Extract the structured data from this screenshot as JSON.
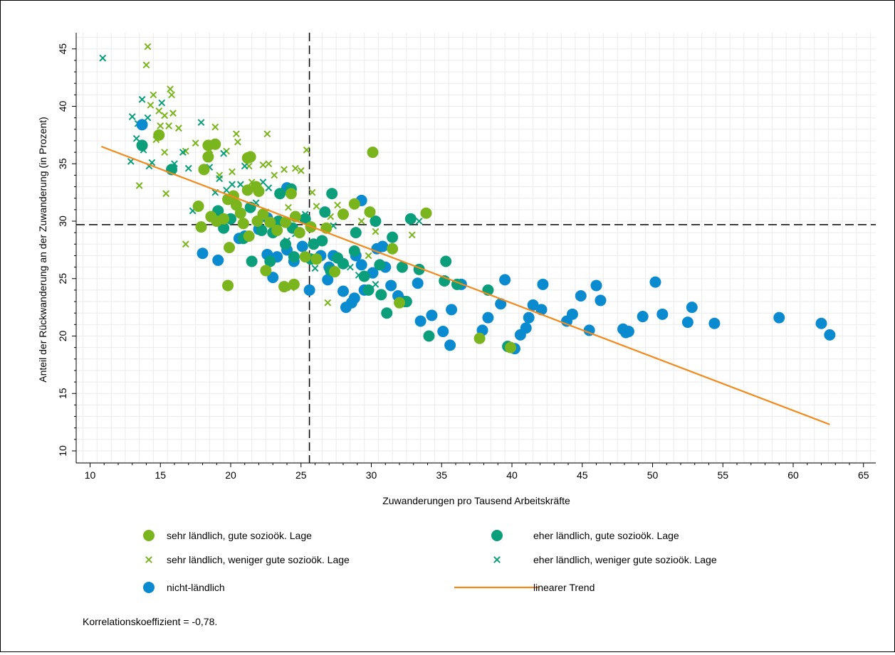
{
  "chart_data": {
    "type": "scatter",
    "title": "",
    "xlabel": "Zuwanderungen pro Tausend Arbeitskräfte",
    "ylabel": "Anteil der Rückwanderung an der Zuwanderung (in Prozent)",
    "xlim": [
      10,
      65
    ],
    "ylim": [
      10,
      45
    ],
    "x_ticks": [
      "10",
      "15",
      "20",
      "25",
      "30",
      "35",
      "40",
      "45",
      "50",
      "55",
      "60",
      "65"
    ],
    "y_ticks": [
      "10",
      "15",
      "20",
      "25",
      "30",
      "35",
      "40",
      "45"
    ],
    "grid": true,
    "reference_lines": {
      "x": 25.6,
      "y": 29.7
    },
    "legend_position": "bottom",
    "note": "Korrelationskoeffizient = -0,78.",
    "colors": {
      "light_green": "#7ab51d",
      "teal": "#0a9e7a",
      "blue": "#0a8bd0",
      "trend": "#f08a1c"
    },
    "series": [
      {
        "name": "sehr ländlich, gute sozioök. Lage",
        "marker": "circle",
        "color": "#7ab51d",
        "points": [
          [
            14.9,
            37.5
          ],
          [
            18.4,
            36.6
          ],
          [
            18.9,
            36.7
          ],
          [
            21.2,
            35.5
          ],
          [
            21.4,
            35.6
          ],
          [
            18.4,
            35.6
          ],
          [
            18.1,
            34.5
          ],
          [
            17.7,
            31.3
          ],
          [
            17.9,
            29.5
          ],
          [
            18.6,
            30.4
          ],
          [
            19.0,
            30.0
          ],
          [
            19.5,
            30.2
          ],
          [
            19.8,
            31.9
          ],
          [
            20.2,
            32.2
          ],
          [
            20.4,
            31.4
          ],
          [
            20.7,
            30.7
          ],
          [
            20.9,
            29.8
          ],
          [
            21.2,
            32.7
          ],
          [
            21.8,
            33.0
          ],
          [
            22.0,
            32.6
          ],
          [
            21.9,
            30.0
          ],
          [
            22.3,
            30.6
          ],
          [
            22.8,
            29.9
          ],
          [
            23.3,
            29.2
          ],
          [
            19.9,
            27.7
          ],
          [
            21.3,
            28.7
          ],
          [
            23.9,
            29.9
          ],
          [
            24.6,
            30.4
          ],
          [
            24.3,
            32.4
          ],
          [
            24.9,
            29.0
          ],
          [
            22.5,
            25.7
          ],
          [
            23.8,
            24.3
          ],
          [
            24.5,
            24.5
          ],
          [
            25.3,
            26.9
          ],
          [
            26.1,
            26.7
          ],
          [
            25.7,
            29.5
          ],
          [
            26.8,
            29.4
          ],
          [
            28.8,
            31.5
          ],
          [
            28.0,
            30.6
          ],
          [
            27.4,
            25.6
          ],
          [
            29.9,
            30.8
          ],
          [
            30.1,
            36.0
          ],
          [
            33.9,
            30.7
          ],
          [
            31.5,
            27.6
          ],
          [
            32.0,
            22.9
          ],
          [
            37.7,
            19.8
          ],
          [
            39.9,
            19.0
          ],
          [
            19.8,
            24.4
          ]
        ]
      },
      {
        "name": "sehr ländlich, weniger gute sozioök. Lage",
        "marker": "x",
        "color": "#7ab51d",
        "points": [
          [
            14.1,
            45.2
          ],
          [
            14.0,
            43.6
          ],
          [
            14.3,
            40.1
          ],
          [
            14.5,
            41.0
          ],
          [
            14.9,
            39.6
          ],
          [
            15.7,
            41.5
          ],
          [
            15.8,
            41.0
          ],
          [
            15.3,
            39.2
          ],
          [
            15.9,
            39.4
          ],
          [
            15.6,
            38.3
          ],
          [
            16.3,
            38.1
          ],
          [
            15.0,
            38.3
          ],
          [
            14.7,
            37.1
          ],
          [
            15.3,
            36.0
          ],
          [
            16.8,
            36.1
          ],
          [
            13.5,
            33.1
          ],
          [
            15.4,
            32.4
          ],
          [
            17.5,
            36.8
          ],
          [
            18.5,
            36.2
          ],
          [
            18.9,
            38.2
          ],
          [
            19.7,
            36.1
          ],
          [
            20.4,
            37.6
          ],
          [
            20.5,
            36.9
          ],
          [
            20.1,
            34.3
          ],
          [
            19.2,
            34.0
          ],
          [
            21.3,
            34.8
          ],
          [
            21.5,
            33.4
          ],
          [
            22.3,
            34.9
          ],
          [
            22.7,
            35.0
          ],
          [
            22.6,
            37.6
          ],
          [
            23.1,
            34.0
          ],
          [
            23.8,
            34.5
          ],
          [
            24.6,
            34.6
          ],
          [
            25.0,
            34.4
          ],
          [
            25.4,
            36.2
          ],
          [
            25.8,
            32.5
          ],
          [
            26.1,
            31.3
          ],
          [
            27.6,
            31.4
          ],
          [
            27.1,
            30.4
          ],
          [
            29.3,
            30.0
          ],
          [
            30.3,
            29.1
          ],
          [
            32.9,
            28.8
          ],
          [
            29.8,
            27.0
          ],
          [
            26.9,
            22.9
          ],
          [
            24.3,
            24.2
          ],
          [
            16.8,
            28.0
          ],
          [
            22.5,
            30.8
          ],
          [
            24.1,
            31.2
          ]
        ]
      },
      {
        "name": "eher ländlich, gute sozioök. Lage",
        "marker": "circle",
        "color": "#0a9e7a",
        "points": [
          [
            13.7,
            36.6
          ],
          [
            15.8,
            34.5
          ],
          [
            19.1,
            30.9
          ],
          [
            19.5,
            29.4
          ],
          [
            20.0,
            30.2
          ],
          [
            20.9,
            28.5
          ],
          [
            21.4,
            31.2
          ],
          [
            21.5,
            26.5
          ],
          [
            22.2,
            29.2
          ],
          [
            23.0,
            29.0
          ],
          [
            23.4,
            30.0
          ],
          [
            23.5,
            32.4
          ],
          [
            23.9,
            28.0
          ],
          [
            24.3,
            32.8
          ],
          [
            24.4,
            29.4
          ],
          [
            25.3,
            30.2
          ],
          [
            25.7,
            26.7
          ],
          [
            25.9,
            28.0
          ],
          [
            26.5,
            28.3
          ],
          [
            26.7,
            30.8
          ],
          [
            27.2,
            32.4
          ],
          [
            27.1,
            25.7
          ],
          [
            27.6,
            26.8
          ],
          [
            28.0,
            26.3
          ],
          [
            28.8,
            27.4
          ],
          [
            28.9,
            29.0
          ],
          [
            29.5,
            25.2
          ],
          [
            29.8,
            24.0
          ],
          [
            30.3,
            30.0
          ],
          [
            30.6,
            26.2
          ],
          [
            30.7,
            23.6
          ],
          [
            31.1,
            22.0
          ],
          [
            31.5,
            28.6
          ],
          [
            32.2,
            26.0
          ],
          [
            32.5,
            23.0
          ],
          [
            32.8,
            30.2
          ],
          [
            33.4,
            25.8
          ],
          [
            34.1,
            20.0
          ],
          [
            35.2,
            24.8
          ],
          [
            35.3,
            26.5
          ],
          [
            36.1,
            24.5
          ],
          [
            38.3,
            24.0
          ],
          [
            39.7,
            19.1
          ],
          [
            24.5,
            26.9
          ],
          [
            22.8,
            26.5
          ]
        ]
      },
      {
        "name": "eher ländlich, weniger gute sozioök. Lage",
        "marker": "x",
        "color": "#0a9e7a",
        "points": [
          [
            10.9,
            44.2
          ],
          [
            13.0,
            39.1
          ],
          [
            13.3,
            37.2
          ],
          [
            13.4,
            38.5
          ],
          [
            13.7,
            40.6
          ],
          [
            13.8,
            36.2
          ],
          [
            14.1,
            39.0
          ],
          [
            14.4,
            35.1
          ],
          [
            15.1,
            40.3
          ],
          [
            16.0,
            35.0
          ],
          [
            16.6,
            36.0
          ],
          [
            17.0,
            34.6
          ],
          [
            17.3,
            30.9
          ],
          [
            17.9,
            38.6
          ],
          [
            18.5,
            34.7
          ],
          [
            18.9,
            32.5
          ],
          [
            19.2,
            33.7
          ],
          [
            19.5,
            35.9
          ],
          [
            19.7,
            32.7
          ],
          [
            20.1,
            33.2
          ],
          [
            20.7,
            33.2
          ],
          [
            21.0,
            34.8
          ],
          [
            21.8,
            31.6
          ],
          [
            22.3,
            33.4
          ],
          [
            22.7,
            32.9
          ],
          [
            24.0,
            28.3
          ],
          [
            24.6,
            28.9
          ],
          [
            25.3,
            30.6
          ],
          [
            26.0,
            25.9
          ],
          [
            26.6,
            30.8
          ],
          [
            27.3,
            29.6
          ],
          [
            28.5,
            26.0
          ],
          [
            29.1,
            25.3
          ],
          [
            30.3,
            24.5
          ],
          [
            33.4,
            30.0
          ],
          [
            12.9,
            35.2
          ],
          [
            14.2,
            34.8
          ]
        ]
      },
      {
        "name": "nicht-ländlich",
        "marker": "circle",
        "color": "#0a8bd0",
        "points": [
          [
            13.7,
            38.4
          ],
          [
            18.0,
            27.2
          ],
          [
            19.1,
            26.6
          ],
          [
            20.6,
            28.5
          ],
          [
            21.0,
            28.7
          ],
          [
            22.0,
            29.3
          ],
          [
            22.6,
            27.1
          ],
          [
            23.0,
            25.1
          ],
          [
            23.3,
            26.9
          ],
          [
            24.0,
            27.5
          ],
          [
            24.5,
            26.5
          ],
          [
            25.1,
            27.8
          ],
          [
            25.6,
            24.0
          ],
          [
            26.4,
            27.0
          ],
          [
            26.9,
            24.9
          ],
          [
            27.0,
            26.0
          ],
          [
            27.3,
            27.0
          ],
          [
            28.0,
            23.9
          ],
          [
            28.2,
            22.5
          ],
          [
            28.6,
            22.9
          ],
          [
            28.8,
            23.3
          ],
          [
            29.3,
            26.2
          ],
          [
            29.5,
            24.0
          ],
          [
            30.1,
            25.5
          ],
          [
            30.4,
            27.6
          ],
          [
            30.8,
            27.8
          ],
          [
            31.0,
            26.0
          ],
          [
            31.4,
            24.4
          ],
          [
            31.9,
            23.5
          ],
          [
            32.4,
            23.0
          ],
          [
            33.3,
            24.6
          ],
          [
            33.5,
            21.3
          ],
          [
            34.3,
            21.8
          ],
          [
            35.1,
            20.4
          ],
          [
            35.6,
            19.2
          ],
          [
            35.7,
            22.3
          ],
          [
            36.4,
            24.5
          ],
          [
            37.9,
            20.5
          ],
          [
            38.3,
            21.6
          ],
          [
            39.2,
            22.8
          ],
          [
            39.5,
            24.9
          ],
          [
            40.2,
            18.9
          ],
          [
            40.6,
            20.1
          ],
          [
            41.0,
            20.7
          ],
          [
            41.2,
            21.6
          ],
          [
            41.5,
            22.7
          ],
          [
            42.1,
            22.3
          ],
          [
            42.2,
            24.5
          ],
          [
            43.9,
            21.3
          ],
          [
            44.3,
            21.9
          ],
          [
            44.9,
            23.5
          ],
          [
            45.5,
            20.5
          ],
          [
            46.0,
            24.4
          ],
          [
            46.3,
            23.1
          ],
          [
            47.9,
            20.6
          ],
          [
            48.1,
            20.3
          ],
          [
            48.3,
            20.4
          ],
          [
            49.3,
            21.7
          ],
          [
            50.2,
            24.7
          ],
          [
            50.7,
            21.9
          ],
          [
            52.5,
            21.2
          ],
          [
            52.8,
            22.5
          ],
          [
            54.4,
            21.1
          ],
          [
            59.0,
            21.6
          ],
          [
            62.0,
            21.1
          ],
          [
            62.6,
            20.1
          ],
          [
            29.3,
            31.8
          ],
          [
            24.0,
            32.9
          ],
          [
            22.6,
            30.3
          ],
          [
            28.9,
            27.0
          ]
        ]
      }
    ],
    "trend": {
      "name": "linearer Trend",
      "x": [
        10.8,
        62.6
      ],
      "y": [
        36.5,
        12.3
      ]
    },
    "legend": [
      {
        "label": "sehr ländlich, gute sozioök. Lage",
        "marker": "circle",
        "color": "#7ab51d"
      },
      {
        "label": "eher ländlich, gute sozioök. Lage",
        "marker": "circle",
        "color": "#0a9e7a"
      },
      {
        "label": "sehr ländlich, weniger gute sozioök. Lage",
        "marker": "x",
        "color": "#7ab51d"
      },
      {
        "label": "eher ländlich, weniger gute sozioök. Lage",
        "marker": "x",
        "color": "#0a9e7a"
      },
      {
        "label": "nicht-ländlich",
        "marker": "circle",
        "color": "#0a8bd0"
      },
      {
        "label": "linearer Trend",
        "marker": "line",
        "color": "#f08a1c"
      }
    ]
  }
}
